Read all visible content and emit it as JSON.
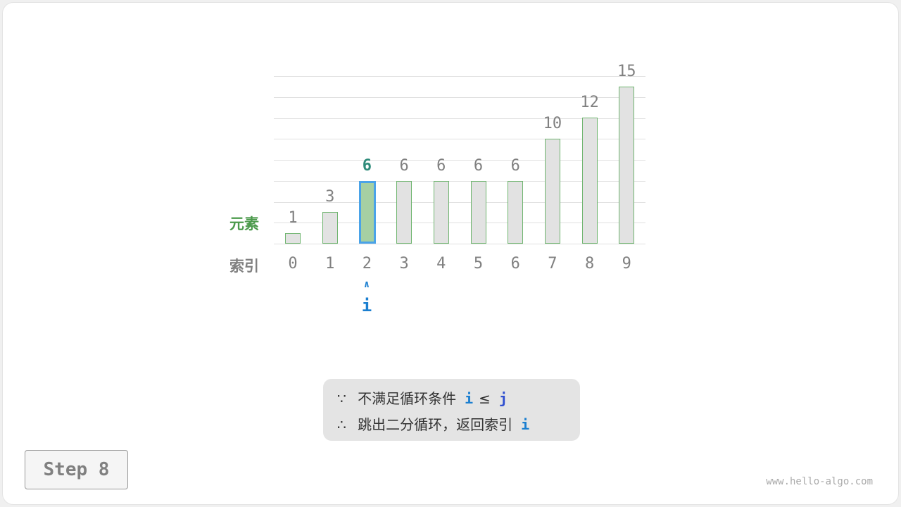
{
  "diagram": {
    "row_labels": {
      "element": "元素",
      "index": "索引"
    },
    "values": [
      1,
      3,
      6,
      6,
      6,
      6,
      6,
      10,
      12,
      15
    ],
    "indices": [
      "0",
      "1",
      "2",
      "3",
      "4",
      "5",
      "6",
      "7",
      "8",
      "9"
    ],
    "highlight_index": 2,
    "pointer": {
      "arrow": "∧",
      "label": "i"
    },
    "colors": {
      "bar": "#e2e2e2",
      "bar_border": "#6fb56f",
      "highlight_fill": "#a6d0a3",
      "highlight_border": "#4aa3e8",
      "highlight_text": "#2e8b7a",
      "pointer": "#1b7fd0",
      "element_label": "#4c9a4c"
    }
  },
  "note": {
    "line1": {
      "symbol": "∵",
      "text": "不满足循环条件",
      "var1": "i",
      "op": "≤",
      "var2": "j"
    },
    "line2": {
      "symbol": "∴",
      "text": "跳出二分循环，返回索引",
      "var": "i"
    }
  },
  "step_label": "Step 8",
  "watermark": "www.hello-algo.com"
}
